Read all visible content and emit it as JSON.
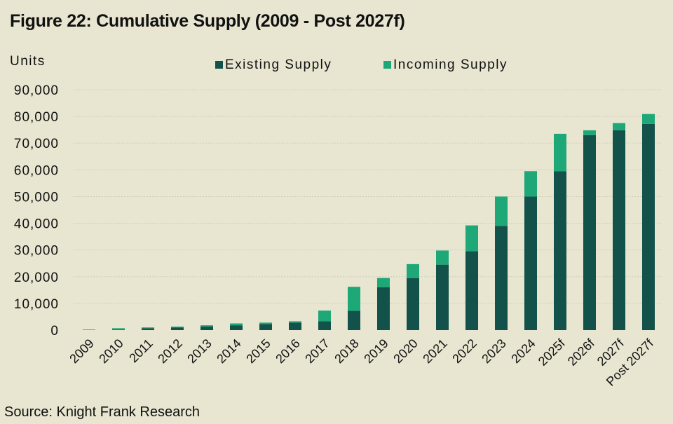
{
  "title": "Figure 22: Cumulative Supply (2009 - Post 2027f)",
  "source": "Source: Knight Frank Research",
  "colors": {
    "existing": "#13514b",
    "incoming": "#1ea878",
    "background": "#e8e6d1",
    "grid": "#cfcdb9"
  },
  "chart_data": {
    "type": "bar",
    "stacked": true,
    "title": "Figure 22: Cumulative Supply (2009 - Post 2027f)",
    "ylabel": "Units",
    "xlabel": "",
    "ylim": [
      0,
      90000
    ],
    "yticks": [
      0,
      10000,
      20000,
      30000,
      40000,
      50000,
      60000,
      70000,
      80000,
      90000
    ],
    "ytick_labels": [
      "0",
      "10,000",
      "20,000",
      "30,000",
      "40,000",
      "50,000",
      "60,000",
      "70,000",
      "80,000",
      "90,000"
    ],
    "legend_position": "top-center",
    "categories": [
      "2009",
      "2010",
      "2011",
      "2012",
      "2013",
      "2014",
      "2015",
      "2016",
      "2017",
      "2018",
      "2019",
      "2020",
      "2021",
      "2022",
      "2023",
      "2024",
      "2025f",
      "2026f",
      "2027f",
      "Post 2027f"
    ],
    "series": [
      {
        "name": "Existing Supply",
        "color": "#13514b",
        "values": [
          0,
          200,
          700,
          1000,
          1300,
          1800,
          2300,
          2800,
          3300,
          7200,
          16000,
          19500,
          24500,
          29500,
          39000,
          50000,
          59500,
          73000,
          74800,
          77200
        ]
      },
      {
        "name": "Incoming Supply",
        "color": "#1ea878",
        "values": [
          200,
          500,
          300,
          300,
          500,
          700,
          500,
          500,
          4000,
          9000,
          3500,
          5200,
          5300,
          9700,
          11000,
          9500,
          14000,
          1800,
          2700,
          3700
        ]
      }
    ]
  }
}
